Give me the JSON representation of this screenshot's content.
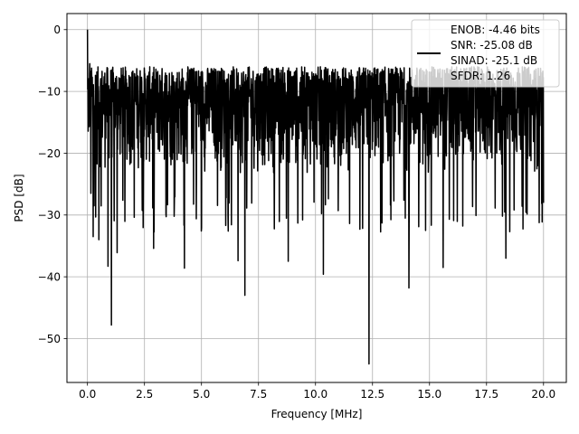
{
  "chart_data": {
    "type": "line",
    "xlabel": "Frequency [MHz]",
    "ylabel": "PSD [dB]",
    "xlim": [
      -0.9,
      21.0
    ],
    "ylim": [
      -57.1,
      2.6
    ],
    "xticks": [
      0.0,
      2.5,
      5.0,
      7.5,
      10.0,
      12.5,
      15.0,
      17.5,
      20.0
    ],
    "xtick_labels": [
      "0.0",
      "2.5",
      "5.0",
      "7.5",
      "10.0",
      "12.5",
      "15.0",
      "17.5",
      "20.0"
    ],
    "yticks": [
      0,
      -10,
      -20,
      -30,
      -40,
      -50
    ],
    "ytick_labels": [
      "0",
      "−10",
      "−20",
      "−30",
      "−40",
      "−50"
    ],
    "grid": true,
    "legend": {
      "placement": "upper right",
      "lines": [
        "ENOB: -4.46 bits",
        "SNR: -25.08 dB",
        "SINAD: -25.1 dB",
        "SFDR: 1.26"
      ]
    },
    "series": [
      {
        "color": "#000000",
        "x_range": [
          0.0,
          20.0
        ],
        "noise_floor_band_db": [
          -27,
          -6
        ],
        "peaks": [
          {
            "x": 0.0,
            "y": 0.0
          },
          {
            "x": 0.1,
            "y": -5.5
          },
          {
            "x": 0.2,
            "y": -8.0
          },
          {
            "x": 0.15,
            "y": -26.5
          },
          {
            "x": 0.25,
            "y": -33.5
          },
          {
            "x": 0.5,
            "y": -34.0
          },
          {
            "x": 0.9,
            "y": -38.3
          },
          {
            "x": 1.05,
            "y": -47.8
          },
          {
            "x": 1.3,
            "y": -36.1
          },
          {
            "x": 2.9,
            "y": -35.4
          },
          {
            "x": 4.25,
            "y": -38.6
          },
          {
            "x": 6.6,
            "y": -37.4
          },
          {
            "x": 6.9,
            "y": -43.0
          },
          {
            "x": 8.8,
            "y": -37.5
          },
          {
            "x": 10.35,
            "y": -39.6
          },
          {
            "x": 12.35,
            "y": -54.1
          },
          {
            "x": 14.1,
            "y": -41.8
          },
          {
            "x": 15.6,
            "y": -38.5
          },
          {
            "x": 18.35,
            "y": -37.0
          }
        ]
      }
    ]
  }
}
